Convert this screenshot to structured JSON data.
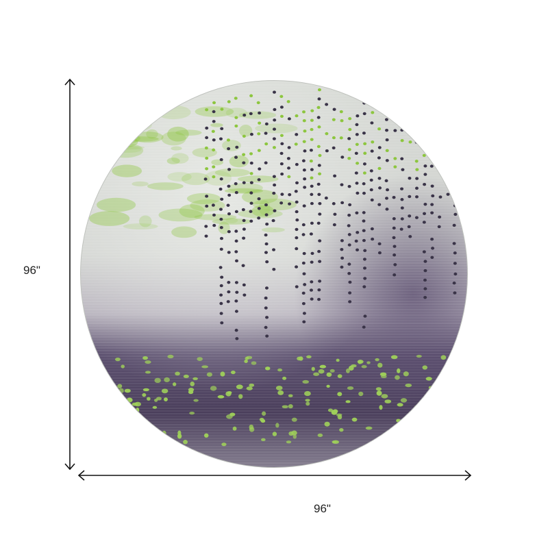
{
  "product": {
    "shape": "round rug",
    "height_label": "96\"",
    "width_label": "96\""
  },
  "colors": {
    "light_gray": "#d9dcd8",
    "purple": "#4a3d5a",
    "lime_green": "#8dc63f",
    "dot_dark": "#3a3448",
    "arrow": "#111111"
  }
}
